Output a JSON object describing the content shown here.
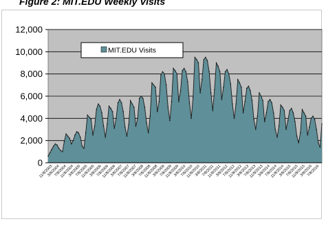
{
  "figure_title": "Figure 2: MIT.EDU Weekly Visits",
  "chart_data": {
    "type": "area",
    "title": "",
    "xlabel": "",
    "ylabel": "",
    "ylim": [
      0,
      12000
    ],
    "yticks": [
      0,
      2000,
      4000,
      6000,
      8000,
      10000,
      12000
    ],
    "ytick_labels": [
      "0",
      "2,000",
      "4,000",
      "6,000",
      "8,000",
      "10,000",
      "12,000"
    ],
    "xtick_labels": [
      "11/8/2003",
      "3/8/2004",
      "7/8/2004",
      "11/8/2004",
      "3/8/2005",
      "7/8/2005",
      "11/8/2005",
      "3/8/2006",
      "7/8/2006",
      "11/8/2006",
      "3/8/2007",
      "7/8/2007",
      "11/8/2007",
      "3/8/2008",
      "7/8/2008",
      "11/8/2008",
      "3/8/2009",
      "7/8/2009",
      "11/8/2009",
      "3/8/2010",
      "7/8/2010",
      "11/8/2010",
      "3/8/2011",
      "7/8/2011",
      "11/8/2011",
      "3/8/2012",
      "7/8/2012",
      "11/8/2012",
      "3/8/2013",
      "7/8/2013",
      "11/8/2013",
      "3/8/2014",
      "7/8/2014",
      "11/8/2014",
      "3/8/2015",
      "7/8/2015",
      "11/8/2015",
      "3/8/2016",
      "7/8/2016"
    ],
    "grid": true,
    "legend_position": "top-left",
    "background_color": "#c0c0c0",
    "series": [
      {
        "name": "MIT.EDU Visits",
        "color": "#5f8f98",
        "x": [
          "11/8/2003",
          "12/8/2003",
          "1/8/2004",
          "2/8/2004",
          "3/8/2004",
          "4/8/2004",
          "5/8/2004",
          "6/8/2004",
          "7/8/2004",
          "8/8/2004",
          "9/8/2004",
          "10/8/2004",
          "11/8/2004",
          "12/8/2004",
          "1/8/2005",
          "2/8/2005",
          "3/8/2005",
          "4/8/2005",
          "5/8/2005",
          "6/8/2005",
          "7/8/2005",
          "8/8/2005",
          "9/8/2005",
          "10/8/2005",
          "11/8/2005",
          "12/8/2005",
          "1/8/2006",
          "2/8/2006",
          "3/8/2006",
          "4/8/2006",
          "5/8/2006",
          "6/8/2006",
          "7/8/2006",
          "8/8/2006",
          "9/8/2006",
          "10/8/2006",
          "11/8/2006",
          "12/8/2006",
          "1/8/2007",
          "2/8/2007",
          "3/8/2007",
          "4/8/2007",
          "5/8/2007",
          "6/8/2007",
          "7/8/2007",
          "8/8/2007",
          "9/8/2007",
          "10/8/2007",
          "11/8/2007",
          "12/8/2007",
          "1/8/2008",
          "2/8/2008",
          "3/8/2008",
          "4/8/2008",
          "5/8/2008",
          "6/8/2008",
          "7/8/2008",
          "8/8/2008",
          "9/8/2008",
          "10/8/2008",
          "11/8/2008",
          "12/8/2008",
          "1/8/2009",
          "2/8/2009",
          "3/8/2009",
          "4/8/2009",
          "5/8/2009",
          "6/8/2009",
          "7/8/2009",
          "8/8/2009",
          "9/8/2009",
          "10/8/2009",
          "11/8/2009",
          "12/8/2009",
          "1/8/2010",
          "2/8/2010",
          "3/8/2010",
          "4/8/2010",
          "5/8/2010",
          "6/8/2010",
          "7/8/2010",
          "8/8/2010",
          "9/8/2010",
          "10/8/2010",
          "11/8/2010",
          "12/8/2010",
          "1/8/2011",
          "2/8/2011",
          "3/8/2011",
          "4/8/2011",
          "5/8/2011",
          "6/8/2011",
          "7/8/2011",
          "8/8/2011",
          "9/8/2011",
          "10/8/2011",
          "11/8/2011",
          "12/8/2011",
          "1/8/2012",
          "2/8/2012",
          "3/8/2012",
          "4/8/2012",
          "5/8/2012",
          "6/8/2012",
          "7/8/2012",
          "8/8/2012",
          "9/8/2012",
          "10/8/2012",
          "11/8/2012",
          "12/8/2012",
          "1/8/2013",
          "2/8/2013",
          "3/8/2013",
          "4/8/2013",
          "5/8/2013",
          "6/8/2013",
          "7/8/2013",
          "8/8/2013",
          "9/8/2013",
          "10/8/2013",
          "11/8/2013",
          "12/8/2013",
          "1/8/2014",
          "2/8/2014",
          "3/8/2014",
          "4/8/2014",
          "5/8/2014",
          "6/8/2014",
          "7/8/2014",
          "8/8/2014",
          "9/8/2014",
          "10/8/2014",
          "11/8/2014",
          "12/8/2014",
          "1/8/2015",
          "2/8/2015",
          "3/8/2015",
          "4/8/2015",
          "5/8/2015",
          "6/8/2015",
          "7/8/2015",
          "8/8/2015",
          "9/8/2015",
          "10/8/2015",
          "11/8/2015",
          "12/8/2015",
          "1/8/2016",
          "2/8/2016",
          "3/8/2016",
          "4/8/2016",
          "5/8/2016",
          "6/8/2016",
          "7/8/2016",
          "8/8/2016"
        ],
        "values": [
          600,
          900,
          1200,
          1500,
          1700,
          1600,
          1300,
          1100,
          1000,
          1900,
          2600,
          2400,
          2200,
          1700,
          2000,
          2500,
          2800,
          2700,
          2300,
          1500,
          1300,
          2700,
          4300,
          4100,
          3900,
          2500,
          3300,
          4800,
          5300,
          5100,
          4500,
          3300,
          2300,
          3500,
          5100,
          4900,
          4600,
          3100,
          4000,
          5400,
          5700,
          5400,
          4600,
          3200,
          2400,
          3400,
          5600,
          5300,
          5000,
          3300,
          4000,
          5800,
          6000,
          5800,
          5000,
          3600,
          2700,
          4200,
          7200,
          7000,
          6800,
          4600,
          5500,
          7900,
          8200,
          8000,
          7000,
          5000,
          3800,
          5500,
          8500,
          8300,
          8000,
          5500,
          6500,
          8300,
          8500,
          8200,
          7300,
          5400,
          4000,
          5900,
          9500,
          9300,
          9000,
          6300,
          7500,
          9300,
          9500,
          9200,
          8200,
          6300,
          4700,
          6600,
          9000,
          8700,
          8200,
          5700,
          6800,
          8200,
          8400,
          8000,
          7100,
          5300,
          4000,
          5300,
          7500,
          7200,
          6800,
          4500,
          5500,
          6700,
          6900,
          6500,
          5600,
          3900,
          3000,
          4200,
          6300,
          6000,
          5600,
          3700,
          4500,
          5500,
          5700,
          5400,
          4500,
          3000,
          2300,
          3300,
          5200,
          5000,
          4700,
          3000,
          3800,
          4700,
          4900,
          4500,
          3700,
          2400,
          1800,
          2700,
          4800,
          4500,
          4200,
          2500,
          3200,
          4000,
          4200,
          3900,
          3000,
          1800,
          1400,
          3500
        ]
      }
    ]
  }
}
